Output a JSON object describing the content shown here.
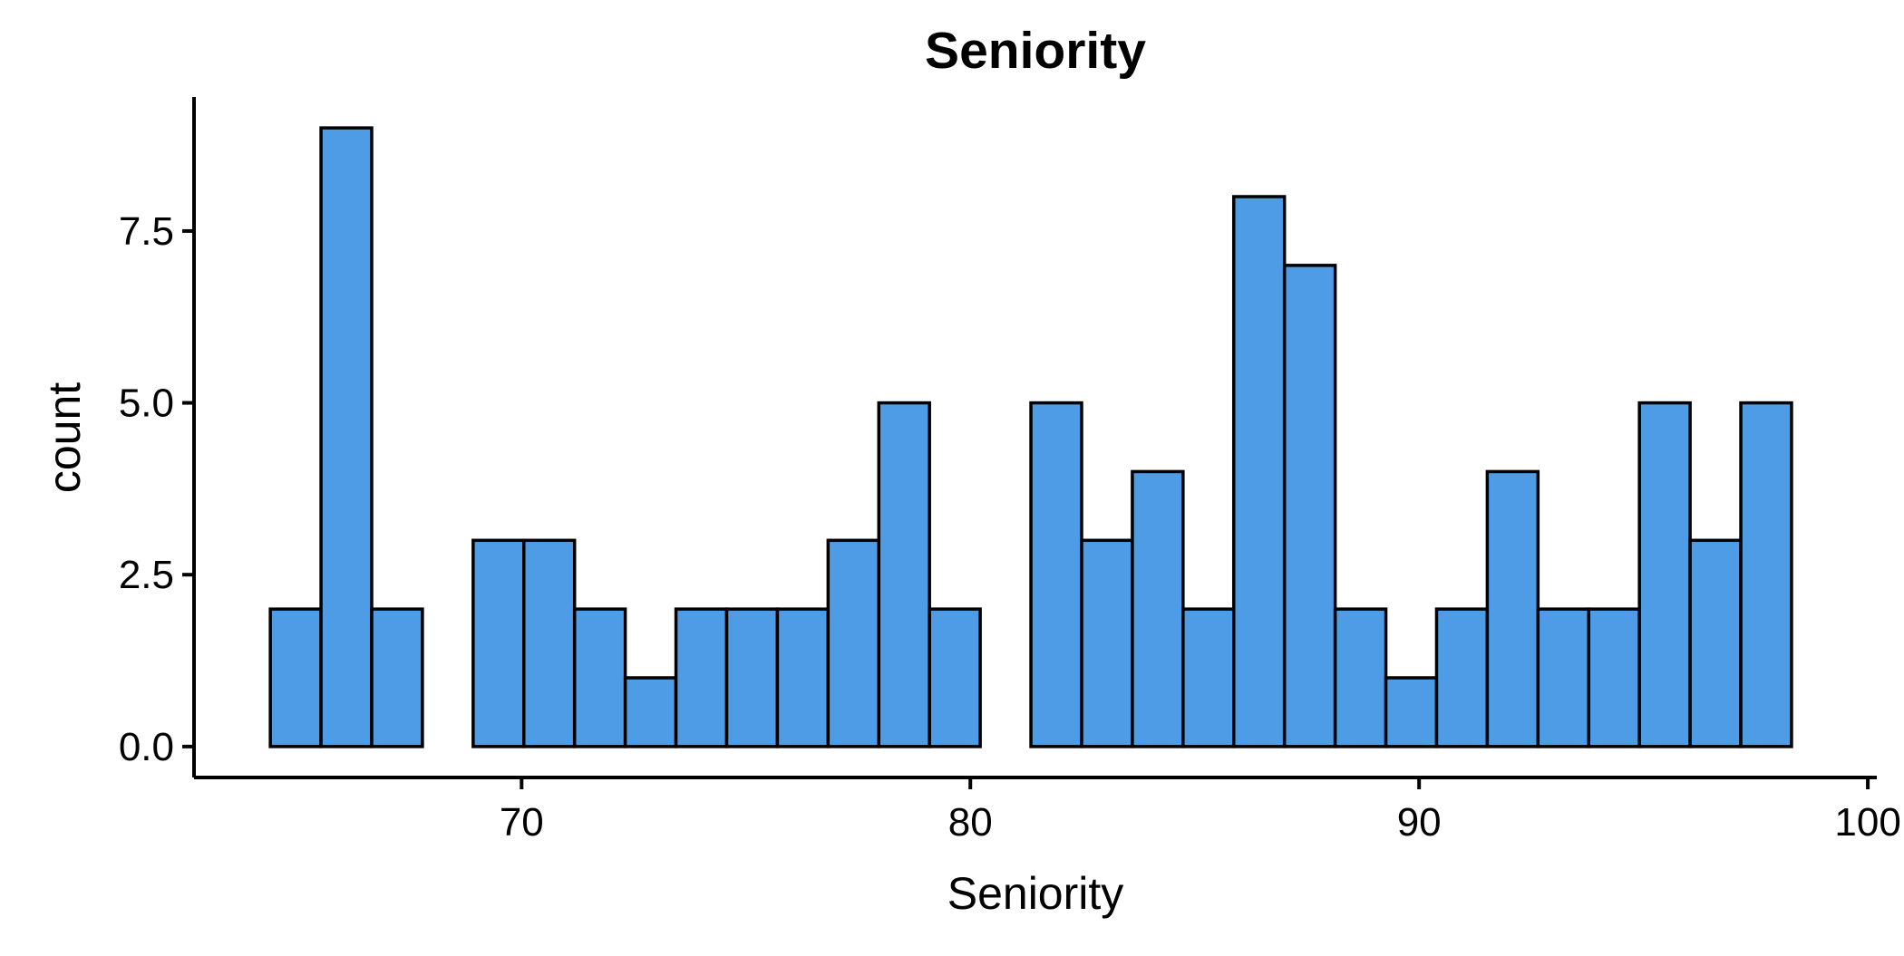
{
  "chart_data": {
    "type": "bar",
    "title": "Seniority",
    "xlabel": "Seniority",
    "ylabel": "count",
    "bin_width": 1.13,
    "bins": [
      {
        "start": 64.4,
        "end": 65.53,
        "count": 2
      },
      {
        "start": 65.53,
        "end": 66.66,
        "count": 9
      },
      {
        "start": 66.66,
        "end": 67.79,
        "count": 2
      },
      {
        "start": 67.79,
        "end": 68.92,
        "count": 0
      },
      {
        "start": 68.92,
        "end": 70.05,
        "count": 3
      },
      {
        "start": 70.05,
        "end": 71.18,
        "count": 3
      },
      {
        "start": 71.18,
        "end": 72.31,
        "count": 2
      },
      {
        "start": 72.31,
        "end": 73.44,
        "count": 1
      },
      {
        "start": 73.44,
        "end": 74.57,
        "count": 2
      },
      {
        "start": 74.57,
        "end": 75.7,
        "count": 2
      },
      {
        "start": 75.7,
        "end": 76.83,
        "count": 2
      },
      {
        "start": 76.83,
        "end": 77.96,
        "count": 3
      },
      {
        "start": 77.96,
        "end": 79.09,
        "count": 5
      },
      {
        "start": 79.09,
        "end": 80.22,
        "count": 2
      },
      {
        "start": 80.22,
        "end": 81.35,
        "count": 0
      },
      {
        "start": 81.35,
        "end": 82.48,
        "count": 5
      },
      {
        "start": 82.48,
        "end": 83.61,
        "count": 3
      },
      {
        "start": 83.61,
        "end": 84.74,
        "count": 4
      },
      {
        "start": 84.74,
        "end": 85.87,
        "count": 2
      },
      {
        "start": 85.87,
        "end": 87.0,
        "count": 8
      },
      {
        "start": 87.0,
        "end": 88.13,
        "count": 7
      },
      {
        "start": 88.13,
        "end": 89.26,
        "count": 2
      },
      {
        "start": 89.26,
        "end": 90.39,
        "count": 1
      },
      {
        "start": 90.39,
        "end": 91.52,
        "count": 2
      },
      {
        "start": 91.52,
        "end": 92.65,
        "count": 4
      },
      {
        "start": 92.65,
        "end": 93.78,
        "count": 2
      },
      {
        "start": 93.78,
        "end": 94.91,
        "count": 2
      },
      {
        "start": 94.91,
        "end": 96.04,
        "count": 5
      },
      {
        "start": 96.04,
        "end": 97.17,
        "count": 3
      },
      {
        "start": 97.17,
        "end": 98.3,
        "count": 5
      }
    ],
    "xlim": [
      62.7,
      100.2
    ],
    "ylim": [
      -0.45,
      9.45
    ],
    "x_ticks": [
      70,
      80,
      90,
      100
    ],
    "x_tick_labels": [
      "70",
      "80",
      "90",
      "100"
    ],
    "y_ticks": [
      0,
      2.5,
      5,
      7.5
    ],
    "y_tick_labels": [
      "0.0",
      "2.5",
      "5.0",
      "7.5"
    ],
    "grid": false,
    "legend": "none",
    "bar_fill": "#4E9BE6",
    "bar_stroke": "#000000"
  }
}
